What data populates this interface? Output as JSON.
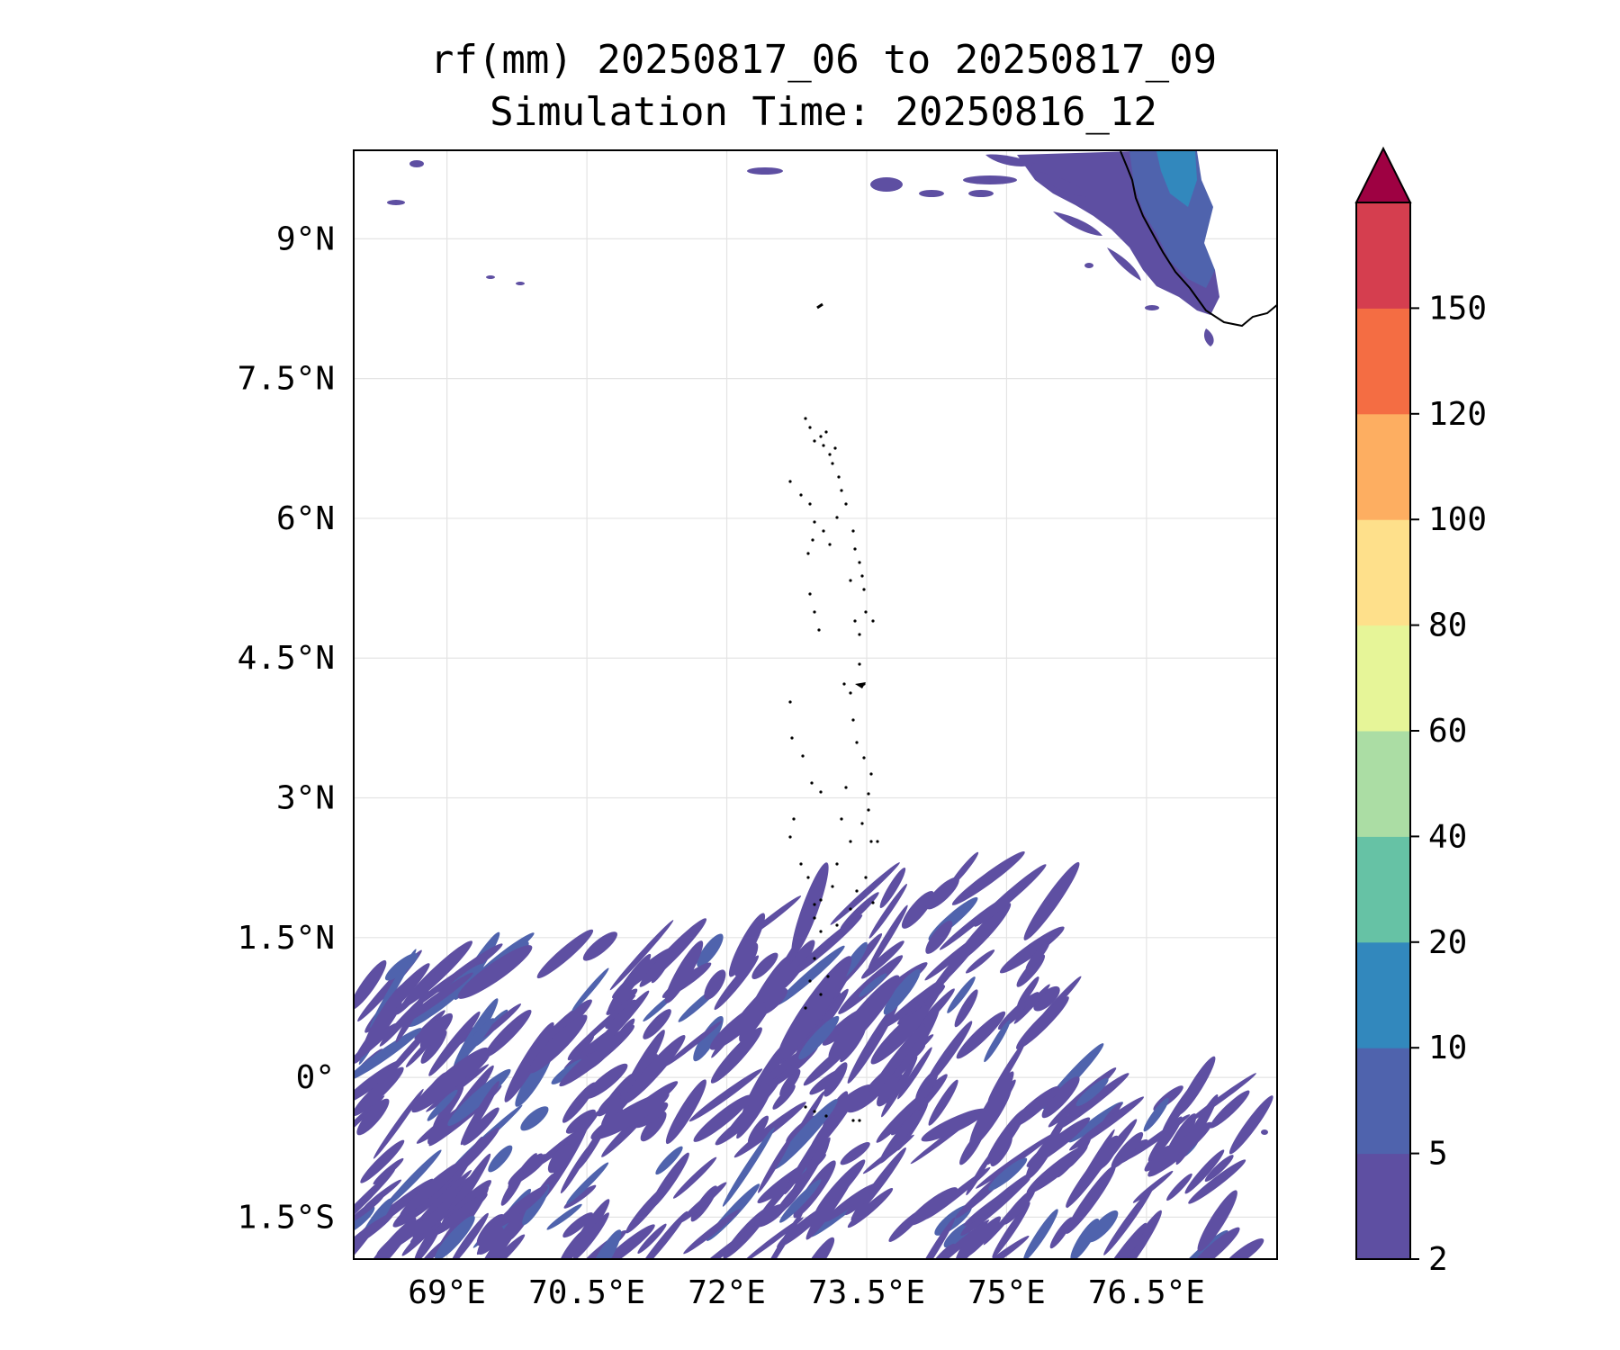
{
  "title": {
    "line1": "rf(mm) 20250817_06 to 20250817_09",
    "line2": "Simulation Time: 20250816_12"
  },
  "map": {
    "lon_range": [
      68.0,
      77.9
    ],
    "lat_range": [
      -1.95,
      9.95
    ],
    "lon_ticks": [
      69,
      70.5,
      72,
      73.5,
      75,
      76.5
    ],
    "lat_ticks": [
      9,
      7.5,
      6,
      4.5,
      3,
      1.5,
      0,
      -1.5
    ],
    "lon_tick_labels": [
      "69°E",
      "70.5°E",
      "72°E",
      "73.5°E",
      "75°E",
      "76.5°E"
    ],
    "lat_tick_labels": [
      "9°N",
      "7.5°N",
      "6°N",
      "4.5°N",
      "3°N",
      "1.5°N",
      "0°",
      "1.5°S"
    ],
    "grid": true
  },
  "colorbar": {
    "levels": [
      2,
      5,
      10,
      20,
      40,
      60,
      80,
      100,
      120,
      150
    ],
    "labels": [
      "2",
      "5",
      "10",
      "20",
      "40",
      "60",
      "80",
      "100",
      "120",
      "150"
    ],
    "colors": [
      "#5e4fa2",
      "#4f63ad",
      "#3288bd",
      "#66c2a5",
      "#abdda4",
      "#e6f598",
      "#fee08b",
      "#fdae61",
      "#f46d43",
      "#d53e4f"
    ],
    "extend_color": "#9e0142",
    "extend": "max"
  },
  "colors": {
    "rain_low": "#5e4fa2",
    "rain_mid": "#4f63ad",
    "rain_high": "#3288bd",
    "coast": "#000000",
    "grid": "#e4e4e4"
  }
}
